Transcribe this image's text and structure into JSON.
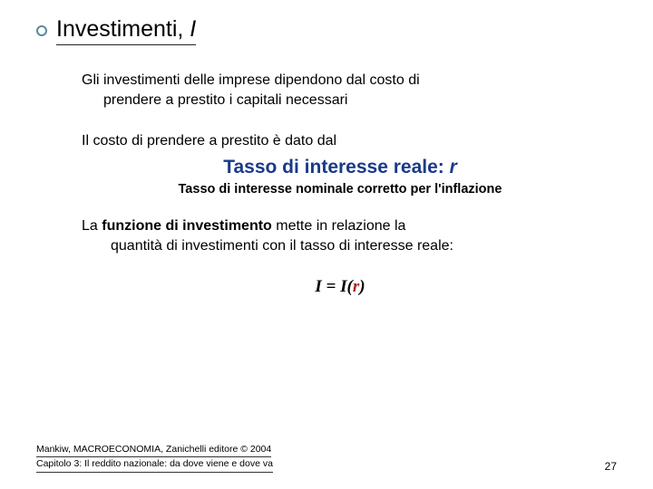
{
  "title": {
    "text": "Investimenti, ",
    "italic": "I"
  },
  "para1_line1": "Gli investimenti delle imprese dipendono dal costo di",
  "para1_line2": "prendere a prestito i capitali necessari",
  "para2": "Il costo di prendere a prestito è dato dal",
  "headline_text": "Tasso di interesse reale: ",
  "headline_r": "r",
  "subhead": "Tasso di interesse nominale corretto per l'inflazione",
  "para3_a": "La ",
  "para3_bold": "funzione di investimento",
  "para3_b": " mette in relazione la",
  "para3_line2": "quantità di investimenti con il tasso di interesse reale:",
  "formula": {
    "i1": "I ",
    "eq": "= ",
    "i2": "I",
    "paren_l": "(",
    "r": "r",
    "paren_r": ")"
  },
  "footer_line1": "Mankiw, MACROECONOMIA, Zanichelli editore © 2004",
  "footer_line2": "Capitolo 3: Il reddito nazionale: da dove viene e dove va",
  "page_num": "27",
  "colors": {
    "headline": "#1a3a8a",
    "formula_red": "#b22020",
    "bullet_border": "#5a8a9e"
  }
}
